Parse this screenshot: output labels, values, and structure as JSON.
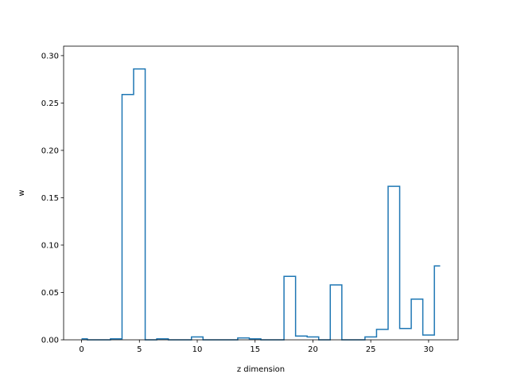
{
  "chart_data": {
    "type": "line",
    "drawstyle": "steps-mid",
    "title": "",
    "xlabel": "z dimension",
    "ylabel": "w",
    "xlim": [
      -1.55,
      32.55
    ],
    "ylim": [
      0,
      0.31
    ],
    "xticks": [
      0,
      5,
      10,
      15,
      20,
      25,
      30
    ],
    "yticks": [
      0.0,
      0.05,
      0.1,
      0.15,
      0.2,
      0.25,
      0.3
    ],
    "ytick_labels": [
      "0.00",
      "0.05",
      "0.10",
      "0.15",
      "0.20",
      "0.25",
      "0.30"
    ],
    "grid": false,
    "line_color": "#1f77b4",
    "x": [
      0,
      1,
      2,
      3,
      4,
      5,
      6,
      7,
      8,
      9,
      10,
      11,
      12,
      13,
      14,
      15,
      16,
      17,
      18,
      19,
      20,
      21,
      22,
      23,
      24,
      25,
      26,
      27,
      28,
      29,
      30,
      31
    ],
    "values": [
      0.001,
      0.0,
      0.0,
      0.001,
      0.259,
      0.286,
      0.0,
      0.001,
      0.0,
      0.0,
      0.003,
      0.0,
      0.0,
      0.0,
      0.002,
      0.001,
      0.0,
      0.0,
      0.067,
      0.004,
      0.003,
      0.0,
      0.058,
      0.0,
      0.0,
      0.003,
      0.011,
      0.162,
      0.012,
      0.043,
      0.005,
      0.078
    ]
  }
}
